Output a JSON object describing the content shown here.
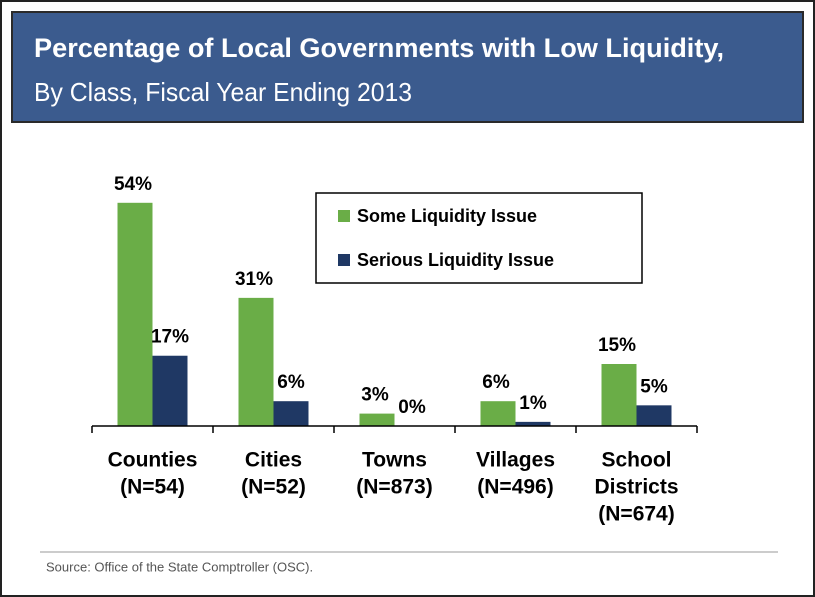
{
  "chart_data": {
    "type": "bar",
    "title": "Percentage of Local Governments with Low Liquidity,",
    "subtitle": "By Class, Fiscal Year Ending 2013",
    "categories": [
      [
        "Counties",
        "(N=54)"
      ],
      [
        "Cities",
        "(N=52)"
      ],
      [
        "Towns",
        "(N=873)"
      ],
      [
        "Villages",
        "(N=496)"
      ],
      [
        "School",
        "Districts",
        "(N=674)"
      ]
    ],
    "series": [
      {
        "name": "Some Liquidity Issue",
        "color": "#6aad47",
        "values": [
          54,
          31,
          3,
          6,
          15
        ],
        "value_labels": [
          "54%",
          "31%",
          "3%",
          "6%",
          "15%"
        ]
      },
      {
        "name": "Serious Liquidity Issue",
        "color": "#1f3864",
        "values": [
          17,
          6,
          0,
          1,
          5
        ],
        "value_labels": [
          "17%",
          "6%",
          "0%",
          "1%",
          "5%"
        ]
      }
    ],
    "ylim": [
      0,
      60
    ],
    "legend": "upper right",
    "source": "Source: Office of the State Comptroller (OSC)."
  }
}
